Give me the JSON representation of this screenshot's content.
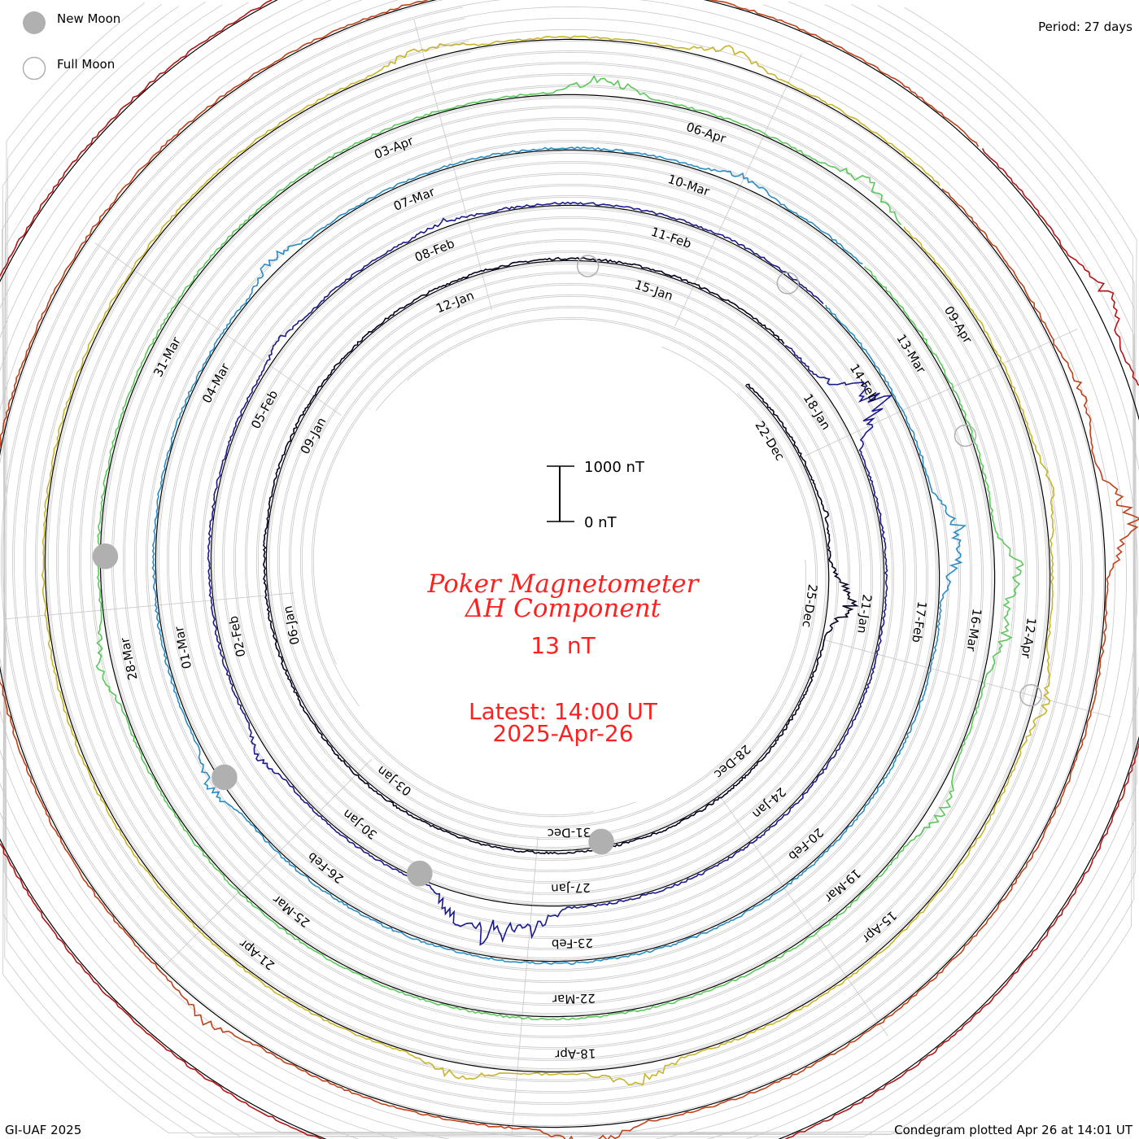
{
  "legend": {
    "new_moon": "New Moon",
    "full_moon": "Full Moon"
  },
  "period_label": "Period: 27 days",
  "footer_left": "GI-UAF 2025",
  "footer_right": "Condegram plotted Apr 26 at 14:01 UT",
  "center": {
    "title_line1": "Poker Magnetometer",
    "title_line2": "ΔH Component",
    "value": "13 nT",
    "latest_label": "Latest: 14:00 UT",
    "latest_date": "2025-Apr-26",
    "scale_top": "1000 nT",
    "scale_bottom": "0 nT"
  },
  "colors": {
    "text_red": "#ff2020",
    "grid": "#c8c8c8",
    "baseline": "#000000",
    "moon_fill": "#b0b0b0"
  },
  "chart_data": {
    "type": "line",
    "title": "Poker Magnetometer ΔH Component",
    "ylabel": "nT",
    "period_days": 27,
    "series": [
      {
        "start": "2024-12-21",
        "color": "#000020",
        "peaks": [
          [
            2.5,
            80
          ],
          [
            3.7,
            260
          ],
          [
            3.9,
            180
          ],
          [
            4.0,
            300
          ]
        ]
      },
      {
        "start": "2025-01-17",
        "color": "#1a1a8c",
        "peaks": [
          [
            1.0,
            500
          ],
          [
            1.3,
            800
          ],
          [
            10.5,
            650
          ],
          [
            11.0,
            780
          ],
          [
            11.4,
            560
          ],
          [
            14.5,
            220
          ],
          [
            19.8,
            150
          ],
          [
            22.2,
            120
          ]
        ]
      },
      {
        "start": "2025-02-13",
        "color": "#2b8cc4",
        "peaks": [
          [
            2.9,
            480
          ],
          [
            3.3,
            320
          ],
          [
            14.5,
            300
          ],
          [
            20.4,
            280
          ],
          [
            25.5,
            220
          ]
        ]
      },
      {
        "start": "2025-03-12",
        "color": "#5ac85a",
        "peaks": [
          [
            3.4,
            600
          ],
          [
            4.0,
            350
          ],
          [
            5.8,
            340
          ],
          [
            16.0,
            300
          ],
          [
            24.0,
            420
          ],
          [
            26.5,
            320
          ]
        ]
      },
      {
        "start": "2025-04-08",
        "color": "#c8b428",
        "peaks": [
          [
            2.7,
            220
          ],
          [
            4.5,
            260
          ],
          [
            9.5,
            420
          ],
          [
            11.0,
            300
          ],
          [
            22.5,
            280
          ],
          [
            25.0,
            300
          ]
        ]
      },
      {
        "start": "2025-04-08b",
        "color": "#c04018",
        "peaks": [
          [
            2.0,
            220
          ],
          [
            3.0,
            700
          ],
          [
            9.9,
            420
          ],
          [
            13.0,
            260
          ]
        ]
      },
      {
        "start": "2025-04-22",
        "color": "#b41414",
        "peaks": [
          [
            1.4,
            400
          ],
          [
            2.2,
            320
          ],
          [
            3.8,
            180
          ],
          [
            4.1,
            250
          ]
        ]
      }
    ],
    "date_labels": [
      {
        "text": "22-Dec",
        "day": 1
      },
      {
        "text": "25-Dec",
        "day": 4
      },
      {
        "text": "28-Dec",
        "day": 7
      },
      {
        "text": "31-Dec",
        "day": 10
      },
      {
        "text": "03-Jan",
        "day": 13
      },
      {
        "text": "06-Jan",
        "day": 16
      },
      {
        "text": "09-Jan",
        "day": 19
      },
      {
        "text": "12-Jan",
        "day": 22
      },
      {
        "text": "15-Jan",
        "day": 25
      },
      {
        "text": "18-Jan",
        "day": 28
      },
      {
        "text": "21-Jan",
        "day": 31
      },
      {
        "text": "24-Jan",
        "day": 34
      },
      {
        "text": "27-Jan",
        "day": 37
      },
      {
        "text": "30-Jan",
        "day": 40
      },
      {
        "text": "02-Feb",
        "day": 43
      },
      {
        "text": "05-Feb",
        "day": 46
      },
      {
        "text": "08-Feb",
        "day": 49
      },
      {
        "text": "11-Feb",
        "day": 52
      },
      {
        "text": "14-Feb",
        "day": 55
      },
      {
        "text": "17-Feb",
        "day": 58
      },
      {
        "text": "20-Feb",
        "day": 61
      },
      {
        "text": "23-Feb",
        "day": 64
      },
      {
        "text": "26-Feb",
        "day": 67
      },
      {
        "text": "01-Mar",
        "day": 70
      },
      {
        "text": "04-Mar",
        "day": 73
      },
      {
        "text": "07-Mar",
        "day": 76
      },
      {
        "text": "10-Mar",
        "day": 79
      },
      {
        "text": "13-Mar",
        "day": 82
      },
      {
        "text": "16-Mar",
        "day": 85
      },
      {
        "text": "19-Mar",
        "day": 88
      },
      {
        "text": "22-Mar",
        "day": 91
      },
      {
        "text": "25-Mar",
        "day": 94
      },
      {
        "text": "28-Mar",
        "day": 97
      },
      {
        "text": "31-Mar",
        "day": 100
      },
      {
        "text": "03-Apr",
        "day": 103
      },
      {
        "text": "06-Apr",
        "day": 106
      },
      {
        "text": "09-Apr",
        "day": 109
      },
      {
        "text": "12-Apr",
        "day": 112
      },
      {
        "text": "15-Apr",
        "day": 115
      },
      {
        "text": "18-Apr",
        "day": 118
      },
      {
        "text": "21-Apr",
        "day": 121
      }
    ],
    "moons": [
      {
        "phase": "new",
        "day": 9.5
      },
      {
        "phase": "full",
        "day": 24.0
      },
      {
        "phase": "new",
        "day": 39.0
      },
      {
        "phase": "full",
        "day": 53.5
      },
      {
        "phase": "new",
        "day": 68.5
      },
      {
        "phase": "full",
        "day": 83.0
      },
      {
        "phase": "new",
        "day": 98.0
      },
      {
        "phase": "full",
        "day": 112.5
      }
    ]
  }
}
